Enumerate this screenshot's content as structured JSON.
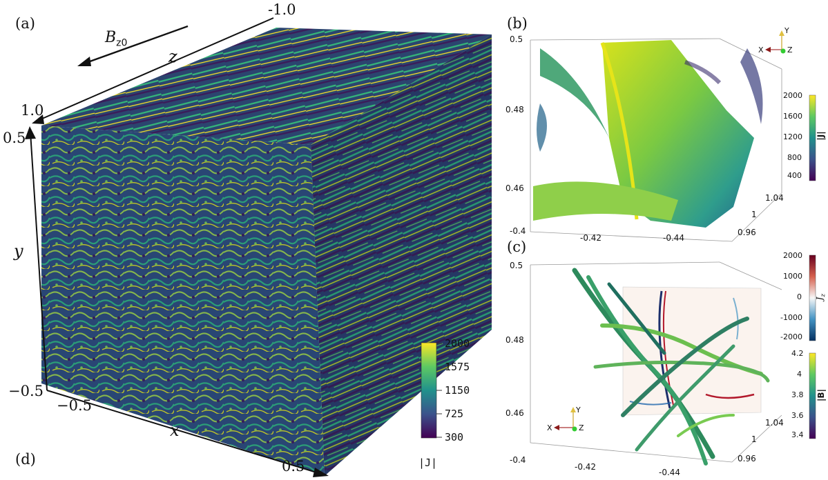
{
  "panel_a": {
    "label": "(a)",
    "sub_label": "(d)",
    "field_label": "B",
    "field_sub": "z0",
    "axes": {
      "z_label": "z",
      "y_label": "y",
      "x_label": "x",
      "z_min": "1.0",
      "z_max": "-1.0",
      "y_min": "−0.5",
      "y_max": "0.5",
      "x_min": "−0.5",
      "x_max": "0.5"
    },
    "colorbar": {
      "ticks": [
        "2000",
        "1575",
        "1150",
        "725",
        "300"
      ],
      "title": "|J|",
      "colors": [
        "#fde725",
        "#5ec962",
        "#21918c",
        "#3b528b",
        "#440154"
      ]
    }
  },
  "panel_b": {
    "label": "(b)",
    "yticks": [
      "0.5",
      "0.48",
      "0.46",
      "-0.4"
    ],
    "xticks": [
      "-0.42",
      "-0.44"
    ],
    "zticks": [
      "1.04",
      "1",
      "0.96"
    ],
    "triad": {
      "y": "Y",
      "x": "X",
      "z": "Z"
    },
    "colorbar": {
      "ticks": [
        "2000",
        "1600",
        "1200",
        "800",
        "400"
      ],
      "title": "|J|"
    }
  },
  "panel_c": {
    "label": "(c)",
    "yticks": [
      "0.5",
      "0.48",
      "0.46",
      "-0.4"
    ],
    "xticks": [
      "-0.42",
      "-0.44"
    ],
    "zticks": [
      "1.04",
      "1",
      "0.96"
    ],
    "triad": {
      "y": "Y",
      "x": "X",
      "z": "Z"
    },
    "colorbar_jz": {
      "ticks": [
        "2000",
        "1000",
        "0",
        "-1000",
        "-2000"
      ],
      "title": "J",
      "title_sub": "z"
    },
    "colorbar_b": {
      "ticks": [
        "4.2",
        "4",
        "3.8",
        "3.6",
        "3.4"
      ],
      "title": "|B|"
    }
  }
}
